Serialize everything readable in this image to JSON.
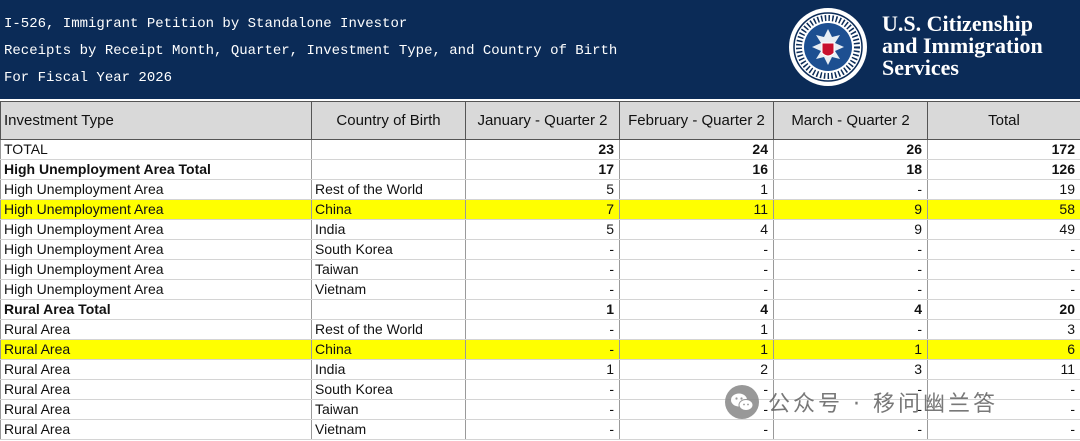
{
  "header": {
    "lines": [
      "I-526, Immigrant Petition by Standalone Investor",
      "Receipts by Receipt Month, Quarter, Investment Type, and Country of Birth",
      "For Fiscal Year 2026"
    ],
    "org_lines": [
      "U.S. Citizenship",
      "and Immigration",
      "Services"
    ],
    "seal_icon": "dhs-seal-icon",
    "colors": {
      "banner": "#0b2b57",
      "highlight": "#ffff00",
      "header_row": "#d9d9d9"
    }
  },
  "table": {
    "columns": [
      "Investment Type",
      "Country of Birth",
      "January - Quarter 2",
      "February - Quarter 2",
      "March - Quarter 2",
      "Total"
    ],
    "rows": [
      {
        "type": "TOTAL",
        "country": "",
        "jan": "23",
        "feb": "24",
        "mar": "26",
        "total": "172",
        "kind": "grand"
      },
      {
        "type": "High Unemployment Area Total",
        "country": "",
        "jan": "17",
        "feb": "16",
        "mar": "18",
        "total": "126",
        "kind": "subtotal"
      },
      {
        "type": "High Unemployment Area",
        "country": "Rest of the World",
        "jan": "5",
        "feb": "1",
        "mar": "-",
        "total": "19",
        "kind": "row"
      },
      {
        "type": "High Unemployment Area",
        "country": "China",
        "jan": "7",
        "feb": "11",
        "mar": "9",
        "total": "58",
        "kind": "highlight"
      },
      {
        "type": "High Unemployment Area",
        "country": "India",
        "jan": "5",
        "feb": "4",
        "mar": "9",
        "total": "49",
        "kind": "row"
      },
      {
        "type": "High Unemployment Area",
        "country": "South Korea",
        "jan": "-",
        "feb": "-",
        "mar": "-",
        "total": "-",
        "kind": "row"
      },
      {
        "type": "High Unemployment Area",
        "country": "Taiwan",
        "jan": "-",
        "feb": "-",
        "mar": "-",
        "total": "-",
        "kind": "row"
      },
      {
        "type": "High Unemployment Area",
        "country": "Vietnam",
        "jan": "-",
        "feb": "-",
        "mar": "-",
        "total": "-",
        "kind": "row"
      },
      {
        "type": "Rural Area Total",
        "country": "",
        "jan": "1",
        "feb": "4",
        "mar": "4",
        "total": "20",
        "kind": "subtotal"
      },
      {
        "type": "Rural Area",
        "country": "Rest of the World",
        "jan": "-",
        "feb": "1",
        "mar": "-",
        "total": "3",
        "kind": "row"
      },
      {
        "type": "Rural Area",
        "country": "China",
        "jan": "-",
        "feb": "1",
        "mar": "1",
        "total": "6",
        "kind": "highlight"
      },
      {
        "type": "Rural Area",
        "country": "India",
        "jan": "1",
        "feb": "2",
        "mar": "3",
        "total": "11",
        "kind": "row"
      },
      {
        "type": "Rural Area",
        "country": "South Korea",
        "jan": "-",
        "feb": "-",
        "mar": "-",
        "total": "-",
        "kind": "row"
      },
      {
        "type": "Rural Area",
        "country": "Taiwan",
        "jan": "-",
        "feb": "-",
        "mar": "-",
        "total": "-",
        "kind": "row"
      },
      {
        "type": "Rural Area",
        "country": "Vietnam",
        "jan": "-",
        "feb": "-",
        "mar": "-",
        "total": "-",
        "kind": "row"
      }
    ]
  },
  "watermark": {
    "icon": "wechat-icon",
    "text": "公众号 · 移问幽兰答"
  }
}
